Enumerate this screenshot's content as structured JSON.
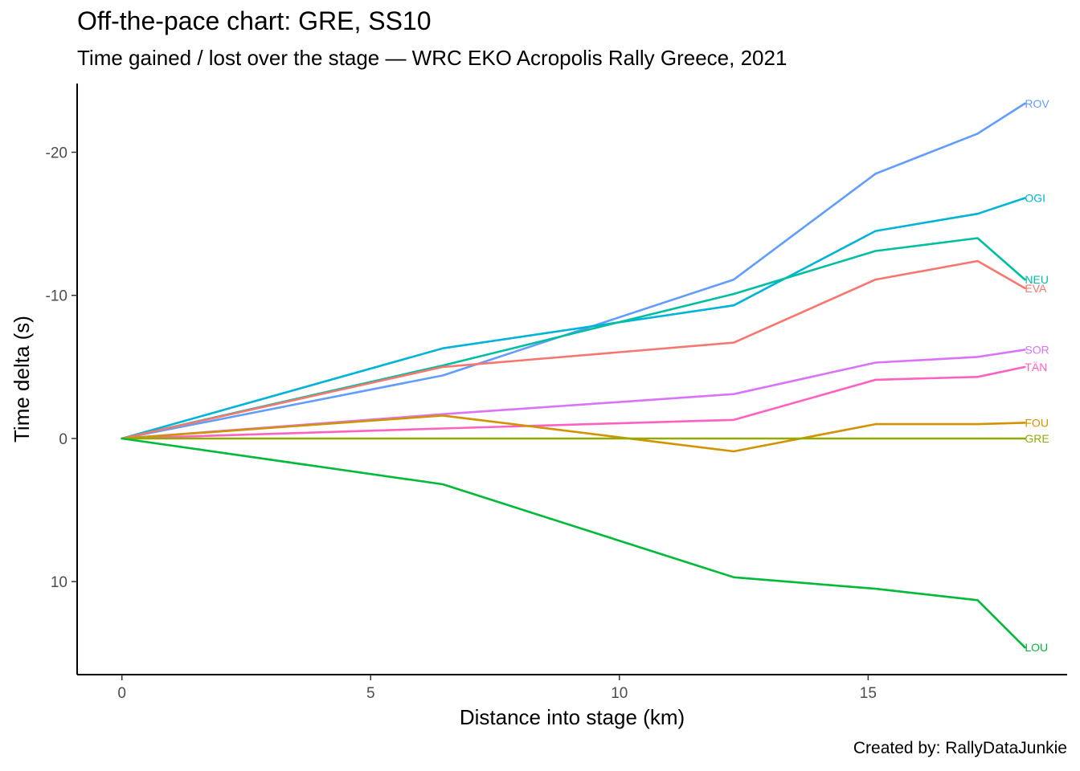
{
  "chart_data": {
    "type": "line",
    "title": "Off-the-pace chart: GRE, SS10",
    "subtitle": "Time gained / lost over the stage — WRC EKO Acropolis Rally Greece, 2021",
    "xlabel": "Distance into stage (km)",
    "ylabel": "Time delta (s)",
    "caption": "Created by: RallyDataJunkie",
    "xlim": [
      -0.9,
      19.0
    ],
    "ylim": [
      -24.8,
      16.5
    ],
    "y_reversed": true,
    "grid": false,
    "legend": "direct labels at line ends",
    "x_ticks": [
      {
        "value": 0,
        "label": "0"
      },
      {
        "value": 5,
        "label": "5"
      },
      {
        "value": 10,
        "label": "10"
      },
      {
        "value": 15,
        "label": "15"
      }
    ],
    "y_ticks": [
      {
        "value": -20,
        "label": "-20"
      },
      {
        "value": -10,
        "label": "-10"
      },
      {
        "value": 0,
        "label": "0"
      },
      {
        "value": 10,
        "label": "10"
      }
    ],
    "x": [
      0,
      6.45,
      12.3,
      15.15,
      17.2,
      18.15
    ],
    "series": [
      {
        "name": "ROV",
        "color": "#619CFF",
        "values": [
          0,
          -4.4,
          -11.1,
          -18.5,
          -21.3,
          -23.4
        ]
      },
      {
        "name": "OGI",
        "color": "#00B4D8",
        "values": [
          0,
          -6.3,
          -9.3,
          -14.5,
          -15.7,
          -16.8
        ]
      },
      {
        "name": "NEU",
        "color": "#00BFA0",
        "values": [
          0,
          -5.1,
          -10.1,
          -13.1,
          -14.0,
          -11.1
        ]
      },
      {
        "name": "EVA",
        "color": "#F8766D",
        "values": [
          0,
          -5.0,
          -6.7,
          -11.1,
          -12.4,
          -10.5
        ]
      },
      {
        "name": "SOR",
        "color": "#DB72FB",
        "values": [
          0,
          -1.7,
          -3.1,
          -5.3,
          -5.7,
          -6.2
        ]
      },
      {
        "name": "TÄN",
        "color": "#FF61C3",
        "values": [
          0,
          -0.7,
          -1.3,
          -4.1,
          -4.3,
          -5.0
        ]
      },
      {
        "name": "FOU",
        "color": "#D39200",
        "values": [
          0,
          -1.6,
          0.9,
          -1.0,
          -1.0,
          -1.1
        ]
      },
      {
        "name": "GRE",
        "color": "#93AA00",
        "values": [
          0,
          0,
          0,
          0,
          0,
          0
        ]
      },
      {
        "name": "LOU",
        "color": "#00BA38",
        "values": [
          0,
          3.2,
          9.7,
          10.5,
          11.3,
          14.6
        ]
      }
    ]
  }
}
